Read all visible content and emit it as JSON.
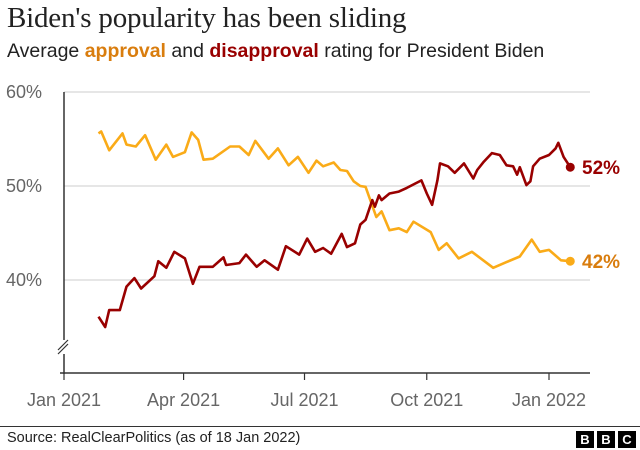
{
  "title": "Biden's popularity has been sliding",
  "subtitle": {
    "pre": "Average ",
    "approval": "approval",
    "mid": " and ",
    "disapproval": "disapproval",
    "post": " rating for President Biden"
  },
  "colors": {
    "approval": "#FAAB18",
    "approval_label": "#D97D0E",
    "disapproval": "#990000",
    "grid": "#dddddd",
    "axis": "#333333"
  },
  "source": "Source: RealClearPolitics (as of 18 Jan 2022)",
  "logo": [
    "B",
    "B",
    "C"
  ],
  "chart_data": {
    "type": "line",
    "title": "Biden's popularity has been sliding",
    "xlabel": "",
    "ylabel": "",
    "ylim": [
      30,
      60
    ],
    "xlim": [
      "2021-01-01",
      "2022-01-31"
    ],
    "y_axis_break": true,
    "grid": true,
    "y_ticks": [
      {
        "value": 60,
        "label": "60%"
      },
      {
        "value": 50,
        "label": "50%"
      },
      {
        "value": 40,
        "label": "40%"
      }
    ],
    "x_ticks": [
      {
        "date": "2021-01-01",
        "label": "Jan 2021"
      },
      {
        "date": "2021-04-01",
        "label": "Apr 2021"
      },
      {
        "date": "2021-07-01",
        "label": "Jul 2021"
      },
      {
        "date": "2021-10-01",
        "label": "Oct 2021"
      },
      {
        "date": "2022-01-01",
        "label": "Jan 2022"
      }
    ],
    "series": [
      {
        "name": "approval",
        "end_label": "42%",
        "points": [
          [
            "2021-01-27",
            55.6
          ],
          [
            "2021-01-29",
            55.8
          ],
          [
            "2021-02-04",
            53.8
          ],
          [
            "2021-02-14",
            55.6
          ],
          [
            "2021-02-17",
            54.4
          ],
          [
            "2021-02-24",
            54.2
          ],
          [
            "2021-03-03",
            55.4
          ],
          [
            "2021-03-11",
            52.8
          ],
          [
            "2021-03-19",
            54.4
          ],
          [
            "2021-03-24",
            53.1
          ],
          [
            "2021-04-02",
            53.6
          ],
          [
            "2021-04-07",
            55.7
          ],
          [
            "2021-04-12",
            54.9
          ],
          [
            "2021-04-16",
            52.8
          ],
          [
            "2021-04-23",
            52.9
          ],
          [
            "2021-05-06",
            54.2
          ],
          [
            "2021-05-13",
            54.2
          ],
          [
            "2021-05-20",
            53.3
          ],
          [
            "2021-05-25",
            54.8
          ],
          [
            "2021-06-04",
            52.9
          ],
          [
            "2021-06-11",
            54.0
          ],
          [
            "2021-06-19",
            52.2
          ],
          [
            "2021-06-26",
            53.1
          ],
          [
            "2021-07-04",
            51.4
          ],
          [
            "2021-07-10",
            52.7
          ],
          [
            "2021-07-15",
            52.1
          ],
          [
            "2021-07-23",
            52.5
          ],
          [
            "2021-07-28",
            51.7
          ],
          [
            "2021-08-02",
            51.6
          ],
          [
            "2021-08-07",
            50.5
          ],
          [
            "2021-08-12",
            50.0
          ],
          [
            "2021-08-16",
            49.9
          ],
          [
            "2021-08-24",
            46.7
          ],
          [
            "2021-08-28",
            47.3
          ],
          [
            "2021-09-03",
            45.3
          ],
          [
            "2021-09-10",
            45.5
          ],
          [
            "2021-09-16",
            45.1
          ],
          [
            "2021-09-21",
            46.2
          ],
          [
            "2021-10-04",
            45.1
          ],
          [
            "2021-10-10",
            43.2
          ],
          [
            "2021-10-16",
            43.9
          ],
          [
            "2021-10-25",
            42.3
          ],
          [
            "2021-11-04",
            43.0
          ],
          [
            "2021-11-20",
            41.3
          ],
          [
            "2021-11-30",
            41.9
          ],
          [
            "2021-12-10",
            42.5
          ],
          [
            "2021-12-19",
            44.3
          ],
          [
            "2021-12-25",
            43.0
          ],
          [
            "2022-01-01",
            43.2
          ],
          [
            "2022-01-10",
            42.1
          ],
          [
            "2022-01-17",
            42.0
          ]
        ]
      },
      {
        "name": "disapproval",
        "end_label": "52%",
        "points": [
          [
            "2021-01-27",
            36.1
          ],
          [
            "2021-02-01",
            35.0
          ],
          [
            "2021-02-04",
            36.8
          ],
          [
            "2021-02-12",
            36.8
          ],
          [
            "2021-02-17",
            39.3
          ],
          [
            "2021-02-23",
            40.2
          ],
          [
            "2021-02-28",
            39.1
          ],
          [
            "2021-03-10",
            40.4
          ],
          [
            "2021-03-13",
            42.0
          ],
          [
            "2021-03-19",
            41.3
          ],
          [
            "2021-03-25",
            43.0
          ],
          [
            "2021-04-02",
            42.3
          ],
          [
            "2021-04-08",
            39.6
          ],
          [
            "2021-04-13",
            41.4
          ],
          [
            "2021-04-23",
            41.4
          ],
          [
            "2021-05-01",
            42.4
          ],
          [
            "2021-05-03",
            41.6
          ],
          [
            "2021-05-13",
            41.8
          ],
          [
            "2021-05-18",
            42.7
          ],
          [
            "2021-05-26",
            41.4
          ],
          [
            "2021-06-01",
            42.1
          ],
          [
            "2021-06-11",
            41.1
          ],
          [
            "2021-06-17",
            43.6
          ],
          [
            "2021-06-27",
            42.7
          ],
          [
            "2021-07-03",
            44.4
          ],
          [
            "2021-07-09",
            43.0
          ],
          [
            "2021-07-15",
            43.4
          ],
          [
            "2021-07-21",
            42.8
          ],
          [
            "2021-07-29",
            44.9
          ],
          [
            "2021-08-02",
            43.5
          ],
          [
            "2021-08-08",
            43.9
          ],
          [
            "2021-08-12",
            45.9
          ],
          [
            "2021-08-16",
            46.4
          ],
          [
            "2021-08-21",
            48.5
          ],
          [
            "2021-08-23",
            47.8
          ],
          [
            "2021-08-26",
            49.0
          ],
          [
            "2021-08-28",
            48.5
          ],
          [
            "2021-09-03",
            49.2
          ],
          [
            "2021-09-10",
            49.4
          ],
          [
            "2021-09-16",
            49.8
          ],
          [
            "2021-09-27",
            50.6
          ],
          [
            "2021-10-01",
            49.2
          ],
          [
            "2021-10-05",
            48.0
          ],
          [
            "2021-10-09",
            50.6
          ],
          [
            "2021-10-11",
            52.4
          ],
          [
            "2021-10-17",
            52.1
          ],
          [
            "2021-10-22",
            51.4
          ],
          [
            "2021-10-29",
            52.4
          ],
          [
            "2021-11-05",
            50.8
          ],
          [
            "2021-11-08",
            51.7
          ],
          [
            "2021-11-13",
            52.6
          ],
          [
            "2021-11-19",
            53.5
          ],
          [
            "2021-11-25",
            53.3
          ],
          [
            "2021-11-30",
            52.2
          ],
          [
            "2021-12-05",
            52.1
          ],
          [
            "2021-12-08",
            51.2
          ],
          [
            "2021-12-10",
            52.0
          ],
          [
            "2021-12-15",
            50.1
          ],
          [
            "2021-12-18",
            50.5
          ],
          [
            "2021-12-20",
            52.1
          ],
          [
            "2021-12-25",
            52.9
          ],
          [
            "2022-01-01",
            53.3
          ],
          [
            "2022-01-06",
            54.0
          ],
          [
            "2022-01-08",
            54.6
          ],
          [
            "2022-01-12",
            53.1
          ],
          [
            "2022-01-17",
            52.0
          ]
        ]
      }
    ]
  }
}
